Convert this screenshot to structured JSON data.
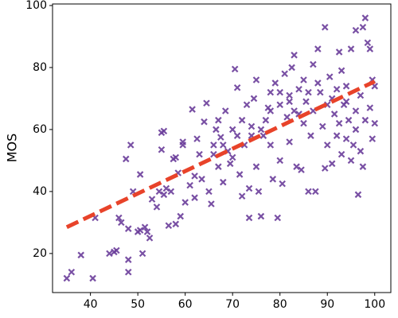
{
  "chart_data": {
    "type": "scatter",
    "ylabel": "MOS",
    "color": "#6a3d9a",
    "x": [
      35,
      36,
      38,
      40.5,
      41,
      44,
      45,
      45.5,
      46,
      46.5,
      47.5,
      48,
      48,
      48,
      48.5,
      49,
      50,
      50.5,
      50.5,
      51,
      51.5,
      52,
      52.5,
      53,
      54,
      54.5,
      55,
      55,
      55.5,
      55.5,
      56,
      56.5,
      57,
      57.5,
      58,
      58,
      58.5,
      59,
      59.5,
      59.5,
      60,
      61,
      61.5,
      62,
      62,
      62.5,
      63,
      63.5,
      64,
      64.5,
      65,
      65.5,
      66,
      66.5,
      67,
      67,
      67.5,
      68,
      68.5,
      69,
      69.5,
      70,
      70.5,
      71,
      71,
      71.5,
      72,
      72,
      72.5,
      73,
      73.5,
      73.5,
      74,
      74.5,
      75,
      75,
      75.5,
      76,
      76.5,
      77,
      77.5,
      78,
      78,
      78.5,
      79,
      79.5,
      80,
      80,
      80.5,
      81,
      81.5,
      82,
      82,
      82.5,
      83,
      83,
      83.5,
      84,
      84.5,
      85,
      85,
      85.5,
      86,
      86.5,
      87,
      87,
      87.5,
      88,
      88.5,
      89,
      89.5,
      89.5,
      90,
      90.5,
      91,
      91,
      91.5,
      92,
      92.5,
      92.5,
      93,
      93,
      93.5,
      94,
      94,
      94.5,
      95,
      95,
      95.5,
      96,
      96,
      96.5,
      97,
      97,
      97.5,
      97.5,
      98,
      98,
      98.5,
      99,
      99,
      99.5,
      99.5,
      100,
      100,
      86,
      88,
      90,
      92,
      94,
      96,
      84,
      82,
      80,
      78,
      76,
      74,
      70,
      68,
      66
    ],
    "y": [
      12,
      14,
      19.5,
      12,
      31.5,
      20,
      20.5,
      21,
      31.5,
      30,
      50.5,
      18,
      14,
      28,
      55,
      40,
      27,
      27.5,
      45.5,
      20,
      28.5,
      27,
      25,
      37.5,
      35,
      40,
      53.5,
      59,
      59.5,
      39,
      41,
      29,
      40,
      50.5,
      51,
      29.5,
      46,
      32,
      55,
      56,
      36.5,
      42,
      66.5,
      38,
      45,
      57,
      52,
      44,
      62.5,
      68.5,
      40,
      36,
      55,
      60,
      63,
      48,
      57.5,
      43,
      66,
      53,
      49,
      60,
      79.5,
      73.5,
      58,
      45.5,
      63,
      38.5,
      55,
      68,
      41,
      31.5,
      61,
      70,
      76,
      48,
      40,
      32,
      58,
      63,
      67,
      72,
      55,
      44,
      75,
      31.5,
      68,
      50,
      42.5,
      78,
      64,
      71,
      56,
      80,
      84,
      66,
      48,
      73,
      47,
      62,
      76,
      69,
      40,
      58,
      81,
      66,
      40,
      86,
      72,
      61,
      93,
      47.5,
      55,
      77,
      70,
      49,
      65,
      58,
      85,
      62,
      52,
      79,
      68,
      57,
      74,
      63,
      50,
      86,
      55,
      92,
      60,
      39,
      71,
      53,
      48,
      93,
      96,
      63,
      88,
      86,
      67,
      57,
      76,
      74,
      62,
      72,
      75,
      68,
      73,
      69,
      66,
      65,
      69,
      72,
      66,
      60,
      58,
      51,
      55,
      52
    ],
    "trend_line": {
      "x": [
        35,
        100
      ],
      "y": [
        28.5,
        75.5
      ],
      "color": "#e8432a"
    },
    "xlim": [
      32,
      103.4
    ],
    "ylim": [
      7.4,
      100.5
    ],
    "xticks": [
      40,
      50,
      60,
      70,
      80,
      90,
      100
    ],
    "yticks": [
      20,
      40,
      60,
      80,
      100
    ]
  }
}
